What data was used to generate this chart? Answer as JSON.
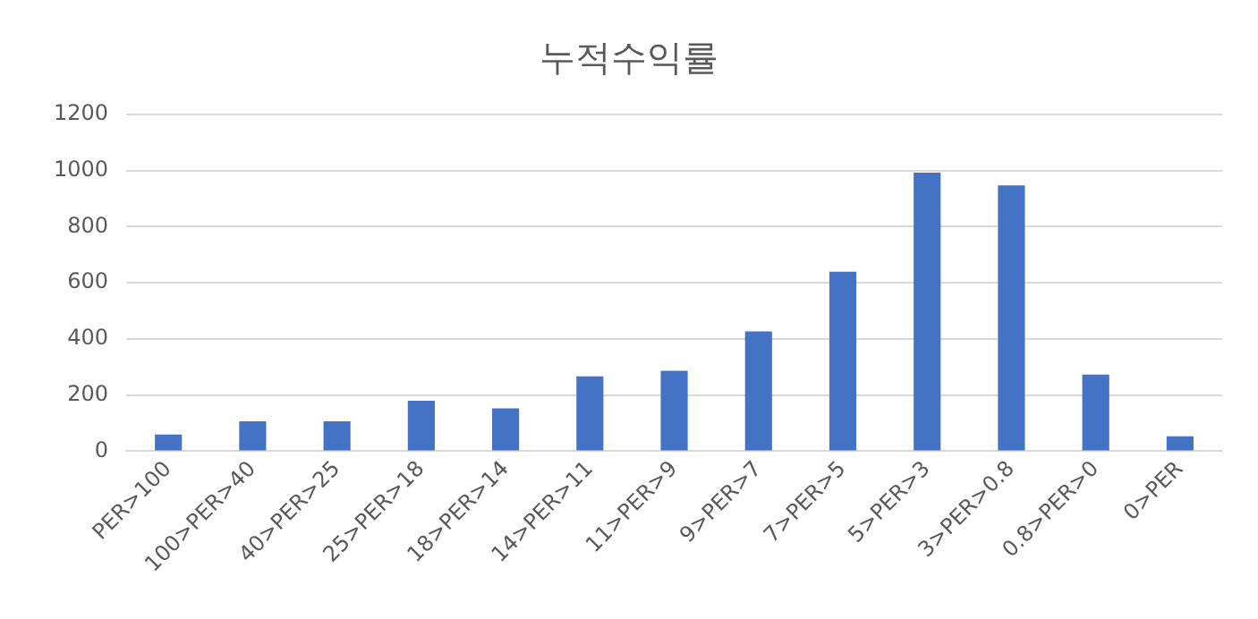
{
  "chart_data": {
    "type": "bar",
    "title": "누적수익률",
    "categories": [
      "PER>100",
      "100>PER>40",
      "40>PER>25",
      "25>PER>18",
      "18>PER>14",
      "14>PER>11",
      "11>PER>9",
      "9>PER>7",
      "7>PER>5",
      "5>PER>3",
      "3>PER>0.8",
      "0.8>PER>0",
      "0>PER"
    ],
    "values": [
      60,
      107,
      107,
      180,
      153,
      267,
      287,
      427,
      640,
      993,
      947,
      273,
      53
    ],
    "color": "#4472c4",
    "ylim": [
      0,
      1200
    ],
    "yticks": [
      0,
      200,
      400,
      600,
      800,
      1000,
      1200
    ],
    "grid": "y",
    "legend": false
  }
}
